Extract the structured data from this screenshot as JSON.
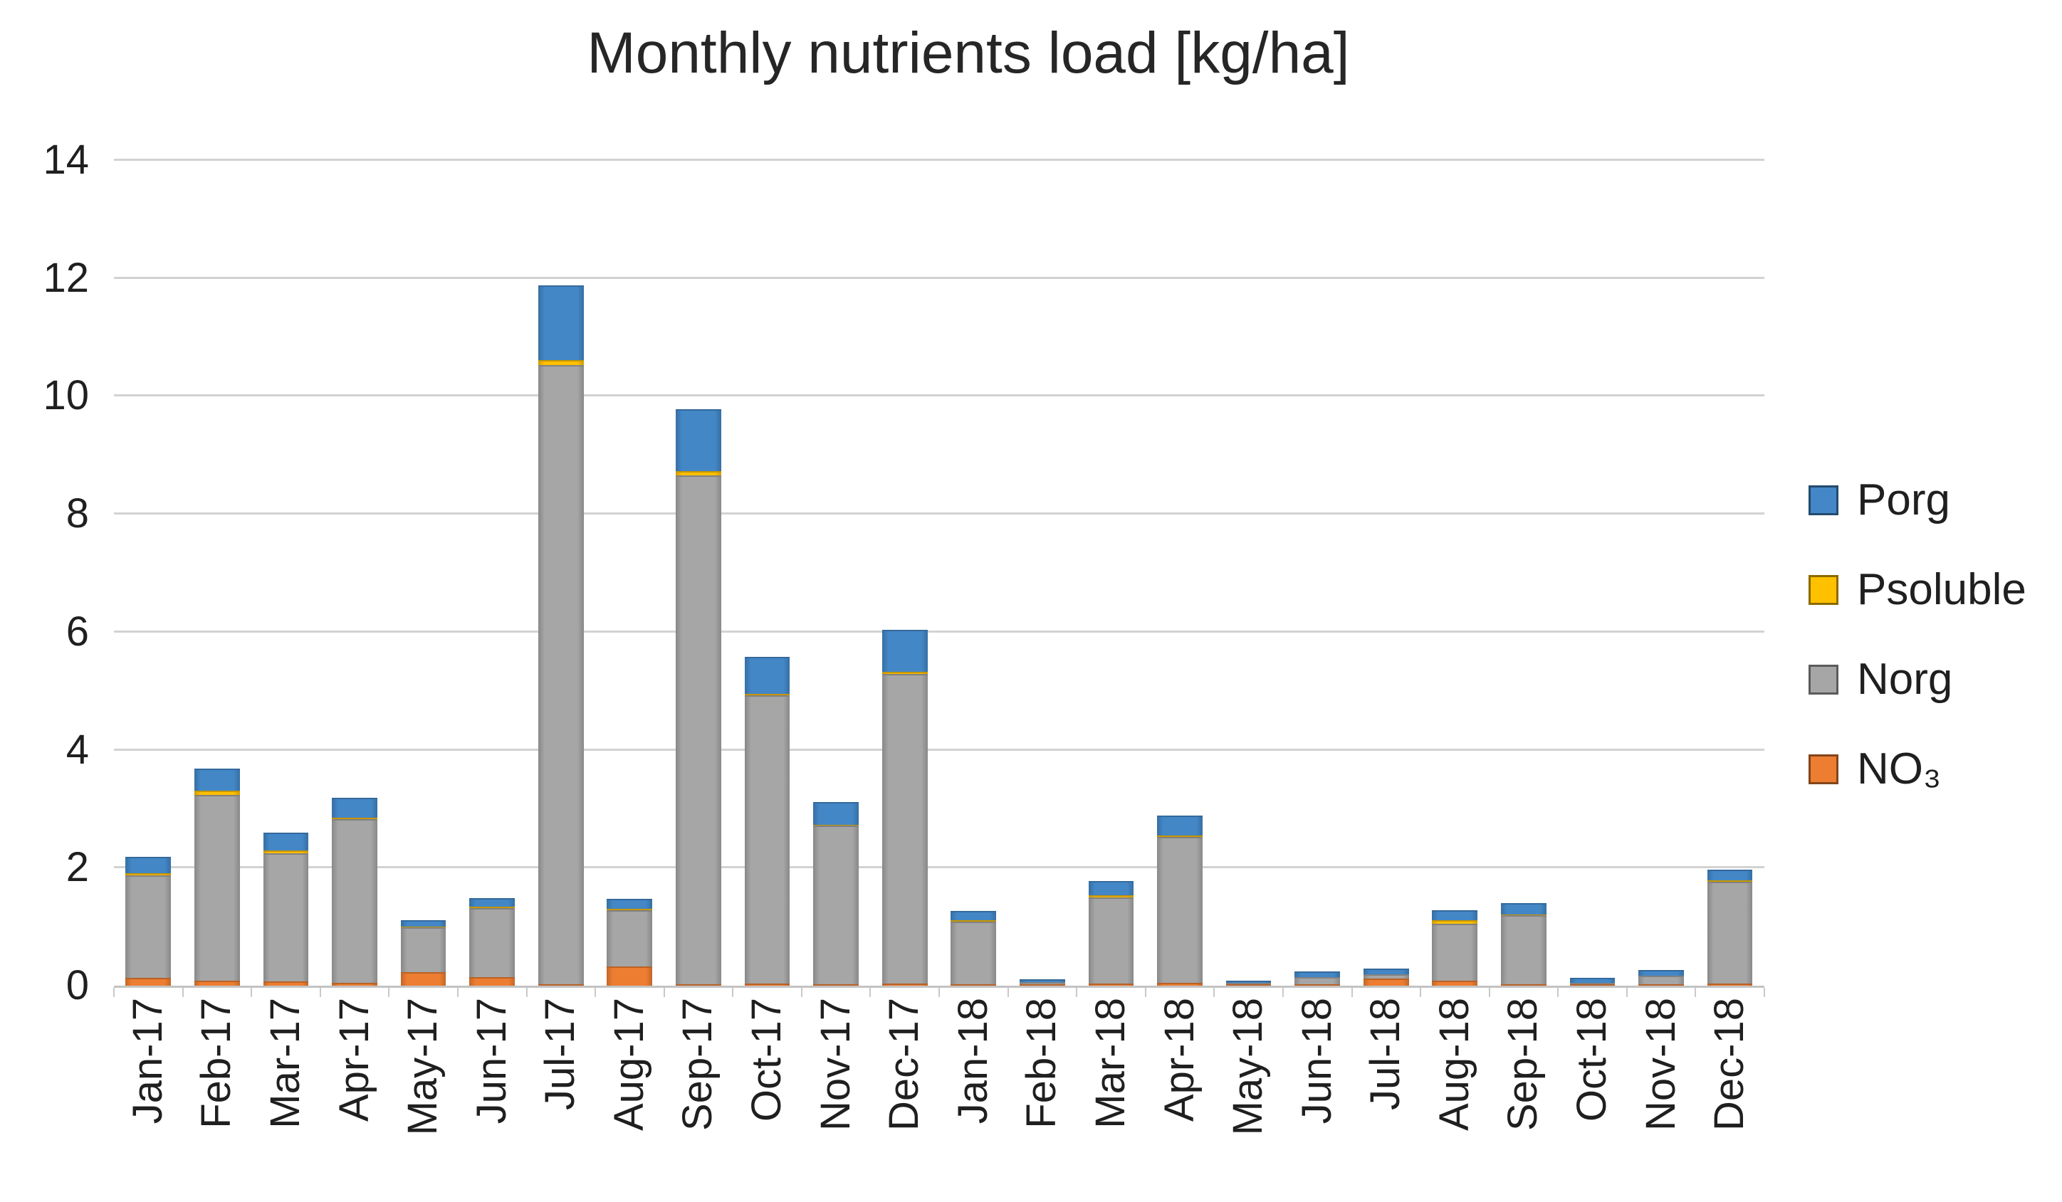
{
  "chart_data": {
    "type": "bar",
    "stacked": true,
    "title": "Monthly nutrients load [kg/ha]",
    "xlabel": "",
    "ylabel": "",
    "ylim": [
      0,
      14
    ],
    "yticks": [
      0,
      2,
      4,
      6,
      8,
      10,
      12,
      14
    ],
    "grid": true,
    "legend_position": "right",
    "categories": [
      "Jan-17",
      "Feb-17",
      "Mar-17",
      "Apr-17",
      "May-17",
      "Jun-17",
      "Jul-17",
      "Aug-17",
      "Sep-17",
      "Oct-17",
      "Nov-17",
      "Dec-17",
      "Jan-18",
      "Feb-18",
      "Mar-18",
      "Apr-18",
      "May-18",
      "Jun-18",
      "Jul-18",
      "Aug-18",
      "Sep-18",
      "Oct-18",
      "Nov-18",
      "Dec-18"
    ],
    "series": [
      {
        "name": "NO₃",
        "color": "#ED7D31",
        "values": [
          0.13,
          0.08,
          0.07,
          0.05,
          0.23,
          0.14,
          0.03,
          0.33,
          0.03,
          0.04,
          0.03,
          0.04,
          0.03,
          0.02,
          0.04,
          0.05,
          0.02,
          0.02,
          0.12,
          0.08,
          0.03,
          0.02,
          0.03,
          0.04
        ]
      },
      {
        "name": "Norg",
        "color": "#A6A6A6",
        "values": [
          1.74,
          3.16,
          2.17,
          2.77,
          0.76,
          1.18,
          10.5,
          0.95,
          8.62,
          4.88,
          2.68,
          5.25,
          1.06,
          0.04,
          1.46,
          2.47,
          0.03,
          0.12,
          0.07,
          0.97,
          1.16,
          0.03,
          0.14,
          1.72
        ]
      },
      {
        "name": "Psoluble",
        "color": "#FFC000",
        "values": [
          0.04,
          0.07,
          0.05,
          0.03,
          0.01,
          0.02,
          0.08,
          0.02,
          0.08,
          0.03,
          0.02,
          0.03,
          0.02,
          0.0,
          0.03,
          0.03,
          0.0,
          0.0,
          0.0,
          0.06,
          0.02,
          0.0,
          0.0,
          0.03
        ]
      },
      {
        "name": "Porg",
        "color": "#4387C7",
        "values": [
          0.27,
          0.37,
          0.3,
          0.34,
          0.11,
          0.15,
          1.27,
          0.17,
          1.05,
          0.63,
          0.38,
          0.71,
          0.16,
          0.05,
          0.25,
          0.34,
          0.03,
          0.1,
          0.1,
          0.17,
          0.19,
          0.08,
          0.1,
          0.18
        ]
      }
    ],
    "legend_order": [
      "Porg",
      "Psoluble",
      "Norg",
      "NO₃"
    ]
  },
  "colors": {
    "background": "#ffffff",
    "gridline": "#d2d2d2",
    "axis_line": "#c3c3c3",
    "text": "#1f1f1f",
    "title_text": "#262626"
  }
}
